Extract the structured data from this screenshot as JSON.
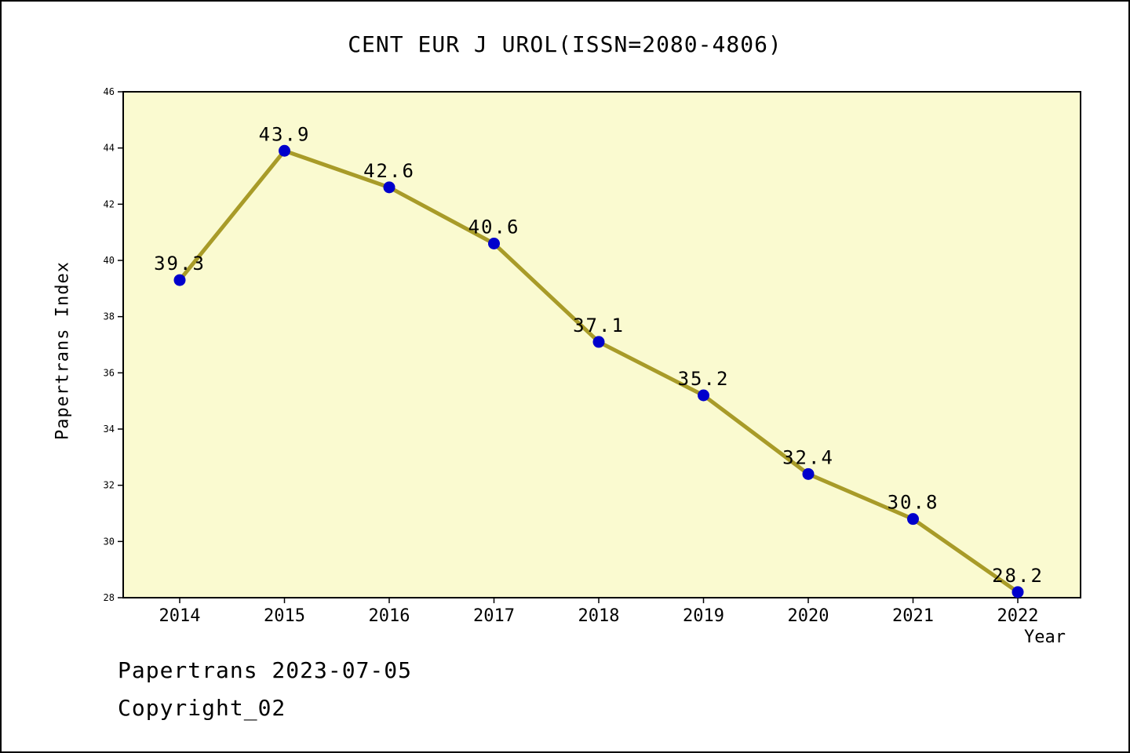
{
  "chart_data": {
    "type": "line",
    "title": "CENT EUR J UROL(ISSN=2080-4806)",
    "xlabel": "Year",
    "ylabel": "Papertrans Index",
    "x": [
      2014,
      2015,
      2016,
      2017,
      2018,
      2019,
      2020,
      2021,
      2022
    ],
    "values": [
      39.3,
      43.9,
      42.6,
      40.6,
      37.1,
      35.2,
      32.4,
      30.8,
      28.2
    ],
    "labels": [
      "39.3",
      "43.9",
      "42.6",
      "40.6",
      "37.1",
      "35.2",
      "32.4",
      "30.8",
      "28.2"
    ],
    "ylim": [
      28,
      46
    ],
    "yticks": [
      28,
      30,
      32,
      34,
      36,
      38,
      40,
      42,
      44,
      46
    ],
    "grid": false,
    "legend_position": "none",
    "colors": {
      "line": "#A89B28",
      "point": "#0000CC",
      "plot_bg": "#FAFAD0",
      "axis": "#000000"
    }
  },
  "footer": {
    "line1": "Papertrans 2023-07-05",
    "line2": "Copyright_02"
  }
}
